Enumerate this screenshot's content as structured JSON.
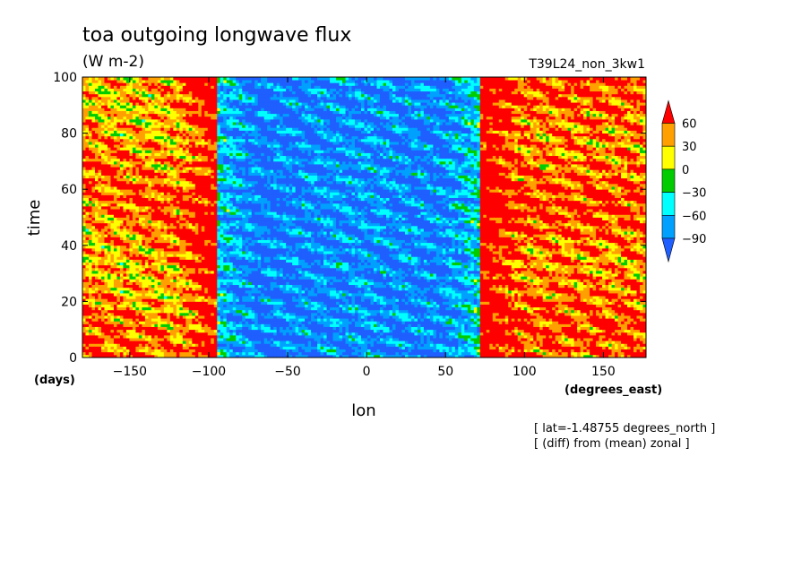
{
  "chart_data": {
    "type": "heatmap",
    "title": "toa outgoing longwave flux",
    "subtitle": "(W m-2)",
    "run_label": "T39L24_non_3kw1",
    "xlabel": "lon",
    "ylabel": "time",
    "x_unit_label": "(degrees_east)",
    "y_unit_label": "(days)",
    "xlim": [
      -180,
      177
    ],
    "ylim": [
      0,
      100
    ],
    "x_ticks": [
      -150,
      -100,
      -50,
      0,
      50,
      100,
      150
    ],
    "y_ticks": [
      0,
      20,
      40,
      60,
      80,
      100
    ],
    "colorbar": {
      "levels": [
        -90,
        -60,
        -30,
        0,
        30,
        60
      ],
      "colors": [
        "#1f5fff",
        "#00a0ff",
        "#00ffff",
        "#00cc00",
        "#ffff00",
        "#ffa000",
        "#ff0000"
      ],
      "extend": "both"
    },
    "field_description": "Hovmoller of OLR anomaly: strongly negative (blue) between about -100 and +75 degrees east, positive (orange/red) elsewhere",
    "footnotes": [
      "[ lat=-1.48755 degrees_north ]",
      "[ (diff) from (mean) zonal ]"
    ]
  }
}
